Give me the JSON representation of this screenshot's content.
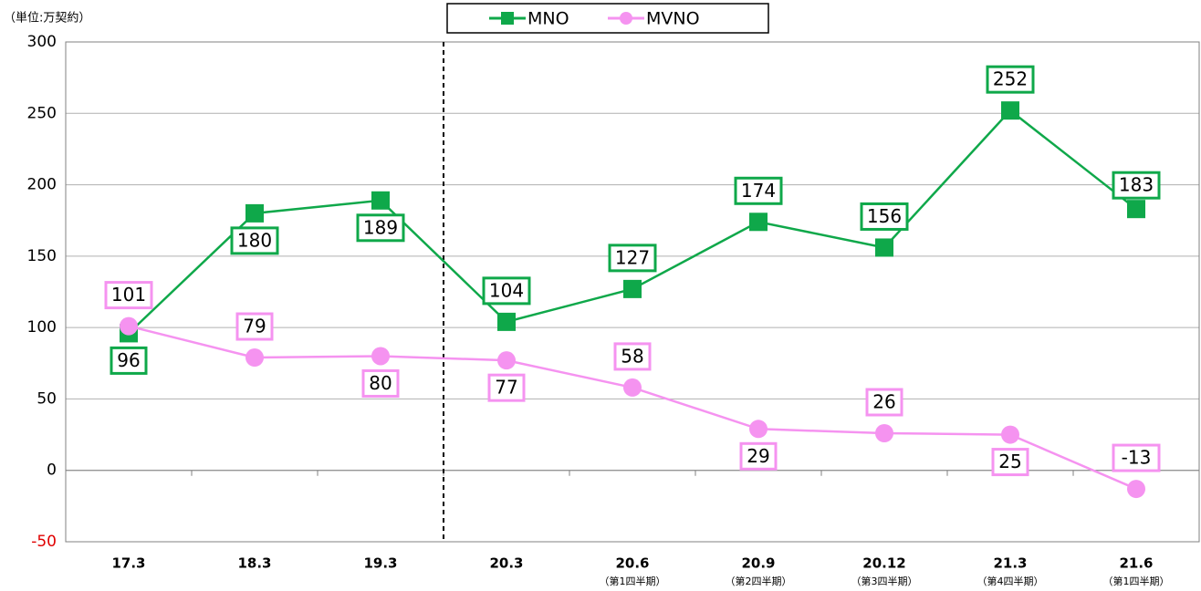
{
  "chart_data": {
    "type": "line",
    "unit_label": "（単位:万契約）",
    "categories": [
      "17.3",
      "18.3",
      "19.3",
      "20.3",
      "20.6",
      "20.9",
      "20.12",
      "21.3",
      "21.6"
    ],
    "category_sublabels": [
      null,
      null,
      null,
      null,
      "（第1四半期）",
      "（第2四半期）",
      "（第3四半期）",
      "（第4四半期）",
      "（第1四半期）"
    ],
    "series": [
      {
        "name": "MNO",
        "color": "#0fa84a",
        "marker": "square",
        "values": [
          96,
          180,
          189,
          104,
          127,
          174,
          156,
          252,
          183
        ]
      },
      {
        "name": "MVNO",
        "color": "#f593f0",
        "marker": "circle",
        "values": [
          101,
          79,
          80,
          77,
          58,
          29,
          26,
          25,
          -13
        ]
      }
    ],
    "ylim": [
      -50,
      300
    ],
    "yticks": [
      -50,
      0,
      50,
      100,
      150,
      200,
      250,
      300
    ],
    "grid": true,
    "legend": "top"
  }
}
